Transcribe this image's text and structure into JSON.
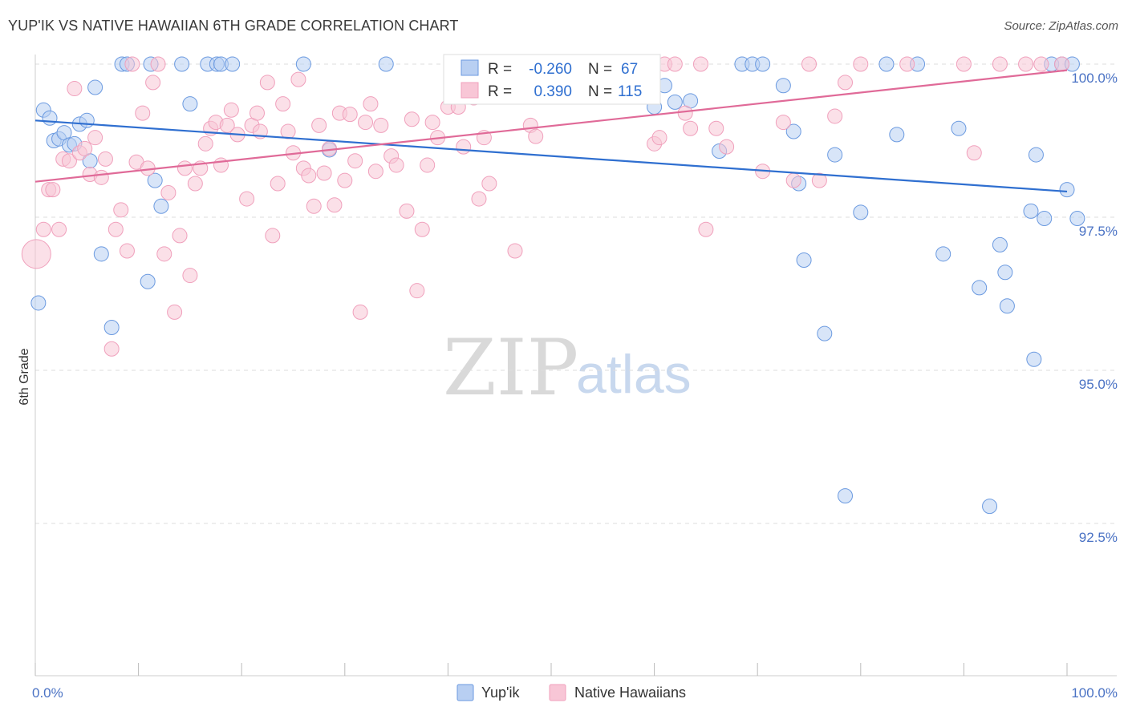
{
  "title": "YUP'IK VS NATIVE HAWAIIAN 6TH GRADE CORRELATION CHART",
  "source": "Source: ZipAtlas.com",
  "watermark": {
    "zip": "ZIP",
    "atlas": "atlas"
  },
  "chart_data": {
    "type": "scatter",
    "ylabel": "6th Grade",
    "xlim": [
      0,
      100
    ],
    "ylim": [
      90.0,
      100.3
    ],
    "x_tick_labels": [
      "0.0%",
      "100.0%"
    ],
    "y_ticks": [
      {
        "value": 100.0,
        "label": "100.0%"
      },
      {
        "value": 97.5,
        "label": "97.5%"
      },
      {
        "value": 95.0,
        "label": "95.0%"
      },
      {
        "value": 92.5,
        "label": "92.5%"
      }
    ],
    "grid": "dashed horizontal",
    "legend": {
      "placement": "top-center",
      "entries": [
        {
          "r_label": "R =",
          "r_value": "-0.260",
          "n_label": "N =",
          "n_value": "67"
        },
        {
          "r_label": "R =",
          "r_value": "0.390",
          "n_label": "N =",
          "n_value": "115"
        }
      ]
    },
    "series": [
      {
        "name": "Yup'ik",
        "color": "#6b9ae0",
        "fill": "#b8cff2",
        "trend": {
          "x0": 0,
          "y0": 99.08,
          "x1": 100,
          "y1": 97.92,
          "color": "#2f6fd0"
        },
        "points": [
          [
            0.3,
            96.1
          ],
          [
            0.8,
            99.25
          ],
          [
            1.4,
            99.12
          ],
          [
            1.8,
            98.75
          ],
          [
            2.3,
            98.78
          ],
          [
            2.8,
            98.88
          ],
          [
            3.3,
            98.68
          ],
          [
            3.8,
            98.7
          ],
          [
            4.3,
            99.02
          ],
          [
            5.0,
            99.08
          ],
          [
            5.3,
            98.42
          ],
          [
            5.8,
            99.62
          ],
          [
            6.4,
            96.9
          ],
          [
            7.4,
            95.7
          ],
          [
            8.4,
            100.0
          ],
          [
            8.9,
            100.0
          ],
          [
            10.9,
            96.45
          ],
          [
            11.2,
            100.0
          ],
          [
            11.6,
            98.1
          ],
          [
            12.2,
            97.68
          ],
          [
            14.2,
            100.0
          ],
          [
            15.0,
            99.35
          ],
          [
            16.7,
            100.0
          ],
          [
            17.6,
            100.0
          ],
          [
            18.0,
            100.0
          ],
          [
            19.1,
            100.0
          ],
          [
            26.0,
            100.0
          ],
          [
            28.5,
            98.6
          ],
          [
            34.0,
            100.0
          ],
          [
            60.0,
            99.3
          ],
          [
            61.0,
            99.65
          ],
          [
            62.0,
            99.38
          ],
          [
            63.5,
            99.4
          ],
          [
            66.3,
            98.58
          ],
          [
            68.5,
            100.0
          ],
          [
            69.5,
            100.0
          ],
          [
            70.5,
            100.0
          ],
          [
            72.5,
            99.65
          ],
          [
            73.5,
            98.9
          ],
          [
            74.0,
            98.05
          ],
          [
            74.5,
            96.8
          ],
          [
            76.5,
            95.6
          ],
          [
            77.5,
            98.52
          ],
          [
            78.5,
            92.95
          ],
          [
            80.0,
            97.58
          ],
          [
            82.5,
            100.0
          ],
          [
            83.5,
            98.85
          ],
          [
            85.5,
            100.0
          ],
          [
            88.0,
            96.9
          ],
          [
            89.5,
            98.95
          ],
          [
            91.5,
            96.35
          ],
          [
            92.5,
            92.78
          ],
          [
            93.5,
            97.05
          ],
          [
            94.0,
            96.6
          ],
          [
            94.2,
            96.05
          ],
          [
            96.5,
            97.6
          ],
          [
            96.8,
            95.18
          ],
          [
            97.0,
            98.52
          ],
          [
            97.8,
            97.48
          ],
          [
            98.5,
            100.0
          ],
          [
            99.5,
            100.0
          ],
          [
            100.0,
            97.95
          ],
          [
            100.5,
            100.0
          ],
          [
            101.0,
            97.48
          ]
        ]
      },
      {
        "name": "Native Hawaiians",
        "color": "#f0a0bc",
        "fill": "#f8c6d6",
        "trend": {
          "x0": 0,
          "y0": 98.08,
          "x1": 100,
          "y1": 99.9,
          "color": "#e06a98"
        },
        "points": [
          [
            0.1,
            96.9
          ],
          [
            0.8,
            97.3
          ],
          [
            1.3,
            97.95
          ],
          [
            1.7,
            97.95
          ],
          [
            2.3,
            97.3
          ],
          [
            2.7,
            98.45
          ],
          [
            3.3,
            98.42
          ],
          [
            3.8,
            99.6
          ],
          [
            4.3,
            98.55
          ],
          [
            4.8,
            98.62
          ],
          [
            5.3,
            98.2
          ],
          [
            5.8,
            98.8
          ],
          [
            6.4,
            98.15
          ],
          [
            6.8,
            98.45
          ],
          [
            7.4,
            95.35
          ],
          [
            7.8,
            97.3
          ],
          [
            8.3,
            97.62
          ],
          [
            8.9,
            96.95
          ],
          [
            9.4,
            100.0
          ],
          [
            9.8,
            98.4
          ],
          [
            10.4,
            99.2
          ],
          [
            10.9,
            98.3
          ],
          [
            11.4,
            99.7
          ],
          [
            11.9,
            100.0
          ],
          [
            12.5,
            96.9
          ],
          [
            12.9,
            97.9
          ],
          [
            13.5,
            95.95
          ],
          [
            14.0,
            97.2
          ],
          [
            14.5,
            98.3
          ],
          [
            15.0,
            96.55
          ],
          [
            15.5,
            98.05
          ],
          [
            16.0,
            98.3
          ],
          [
            16.5,
            98.7
          ],
          [
            17.0,
            98.95
          ],
          [
            17.5,
            99.05
          ],
          [
            18.0,
            98.35
          ],
          [
            18.6,
            99.0
          ],
          [
            19.0,
            99.25
          ],
          [
            19.6,
            98.85
          ],
          [
            20.5,
            97.8
          ],
          [
            21.0,
            99.0
          ],
          [
            21.5,
            99.2
          ],
          [
            21.8,
            98.9
          ],
          [
            22.5,
            99.7
          ],
          [
            23.0,
            97.2
          ],
          [
            23.5,
            98.05
          ],
          [
            24.0,
            99.35
          ],
          [
            24.5,
            98.9
          ],
          [
            25.0,
            98.55
          ],
          [
            25.5,
            99.75
          ],
          [
            26.0,
            98.3
          ],
          [
            26.5,
            98.18
          ],
          [
            27.0,
            97.68
          ],
          [
            27.5,
            99.0
          ],
          [
            28.0,
            98.22
          ],
          [
            28.5,
            98.62
          ],
          [
            29.0,
            97.7
          ],
          [
            29.5,
            99.2
          ],
          [
            30.0,
            98.1
          ],
          [
            30.5,
            99.18
          ],
          [
            31.0,
            98.42
          ],
          [
            31.5,
            95.95
          ],
          [
            32.0,
            99.05
          ],
          [
            32.5,
            99.35
          ],
          [
            33.0,
            98.25
          ],
          [
            33.5,
            99.0
          ],
          [
            34.5,
            98.5
          ],
          [
            35.0,
            98.35
          ],
          [
            36.0,
            97.6
          ],
          [
            36.5,
            99.1
          ],
          [
            37.0,
            96.3
          ],
          [
            37.5,
            97.3
          ],
          [
            38.0,
            98.35
          ],
          [
            38.5,
            99.05
          ],
          [
            39.0,
            98.8
          ],
          [
            40.0,
            99.3
          ],
          [
            40.5,
            100.0
          ],
          [
            41.0,
            99.3
          ],
          [
            41.5,
            98.65
          ],
          [
            42.0,
            100.0
          ],
          [
            42.5,
            99.45
          ],
          [
            43.0,
            97.8
          ],
          [
            43.5,
            98.8
          ],
          [
            44.0,
            98.05
          ],
          [
            45.0,
            100.0
          ],
          [
            46.5,
            96.95
          ],
          [
            47.0,
            100.0
          ],
          [
            48.0,
            99.0
          ],
          [
            48.5,
            98.82
          ],
          [
            52.5,
            100.0
          ],
          [
            56.5,
            100.0
          ],
          [
            60.0,
            98.7
          ],
          [
            60.5,
            98.8
          ],
          [
            61.0,
            100.0
          ],
          [
            62.0,
            100.0
          ],
          [
            63.0,
            99.2
          ],
          [
            63.5,
            98.95
          ],
          [
            64.5,
            100.0
          ],
          [
            65.0,
            97.3
          ],
          [
            66.0,
            98.95
          ],
          [
            67.0,
            98.65
          ],
          [
            70.5,
            98.25
          ],
          [
            72.5,
            99.05
          ],
          [
            73.5,
            98.1
          ],
          [
            75.0,
            100.0
          ],
          [
            76.0,
            98.1
          ],
          [
            77.5,
            99.15
          ],
          [
            78.5,
            99.7
          ],
          [
            80.0,
            100.0
          ],
          [
            84.5,
            100.0
          ],
          [
            90.0,
            100.0
          ],
          [
            91.0,
            98.55
          ],
          [
            93.5,
            100.0
          ],
          [
            96.0,
            100.0
          ],
          [
            97.5,
            100.0
          ],
          [
            99.5,
            100.0
          ]
        ]
      }
    ]
  }
}
